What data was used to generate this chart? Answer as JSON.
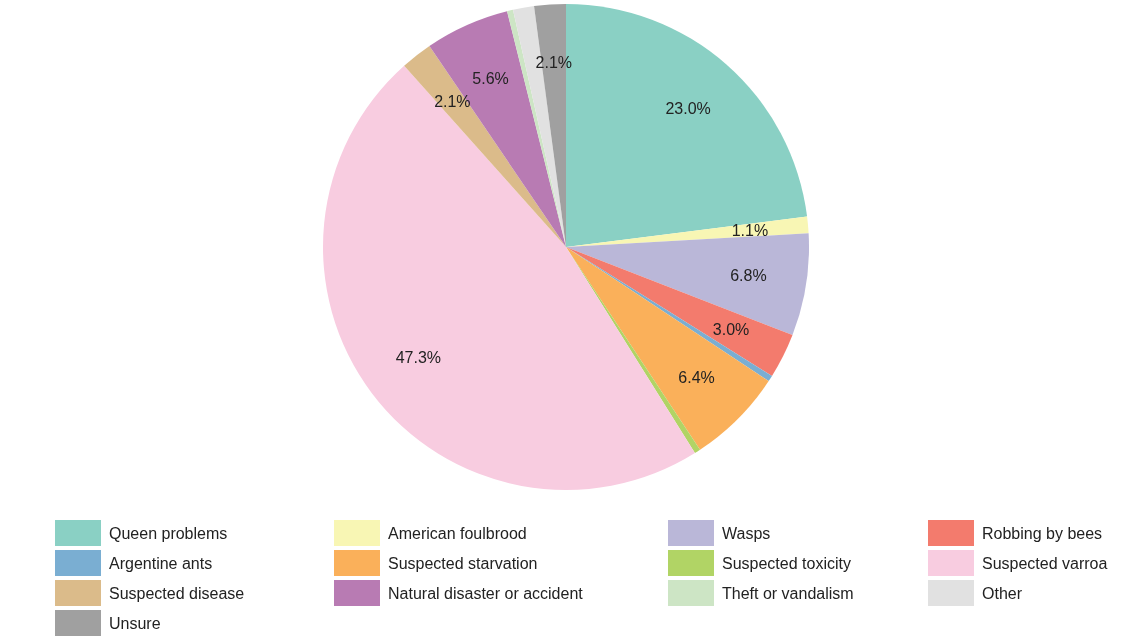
{
  "chart_data": {
    "type": "pie",
    "categories": [
      "Queen problems",
      "American foulbrood",
      "Wasps",
      "Robbing by bees",
      "Argentine ants",
      "Suspected starvation",
      "Suspected toxicity",
      "Suspected varroa",
      "Suspected disease",
      "Natural disaster or accident",
      "Theft or vandalism",
      "Other",
      "Unsure"
    ],
    "values": [
      23.0,
      1.1,
      6.8,
      3.0,
      0.4,
      6.4,
      0.4,
      47.3,
      2.1,
      5.6,
      0.4,
      1.4,
      2.1
    ],
    "colors": [
      "#8ad0c4",
      "#f8f6b4",
      "#bab7d8",
      "#f37b6d",
      "#7aaed2",
      "#fab05a",
      "#b1d465",
      "#f8cce0",
      "#dbbb8a",
      "#b87bb3",
      "#cde5c5",
      "#e1e1e1",
      "#a0a0a0"
    ],
    "value_labels": [
      "23.0%",
      "1.1%",
      "6.8%",
      "3.0%",
      null,
      "6.4%",
      null,
      "47.3%",
      "2.1%",
      "5.6%",
      null,
      null,
      "2.1%"
    ],
    "legend": "bottom"
  }
}
